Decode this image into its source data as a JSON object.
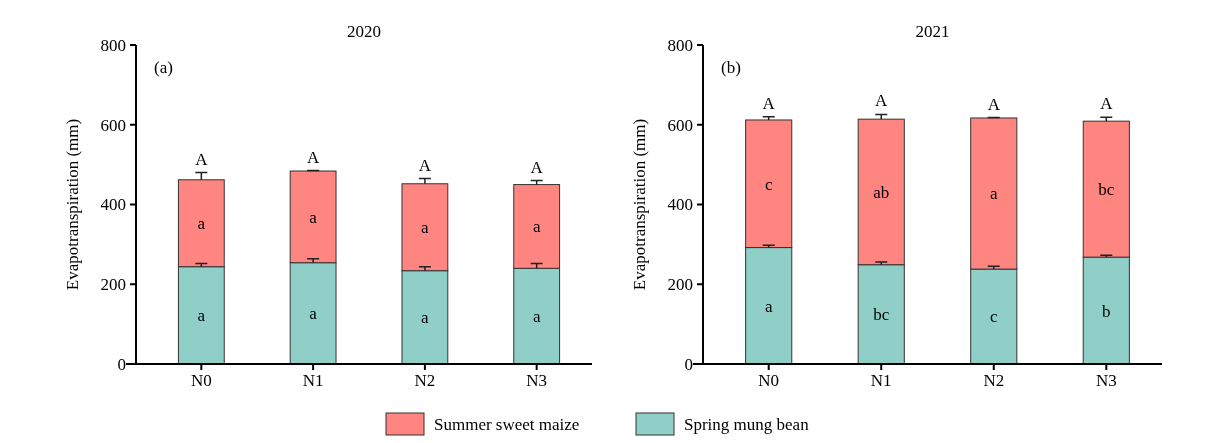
{
  "chart_data": [
    {
      "type": "bar",
      "stacked": true,
      "title": "2020",
      "ylabel": "Evapotranspiration (mm)",
      "categories": [
        "N0",
        "N1",
        "N2",
        "N3"
      ],
      "ylim": [
        0,
        800
      ],
      "yticks": [
        0,
        200,
        400,
        600,
        800
      ],
      "legend": "bottom",
      "series": [
        {
          "name": "Spring mung bean",
          "color": "#8fcfc8",
          "values": [
            244,
            254,
            234,
            240
          ],
          "errors": [
            8,
            10,
            10,
            12
          ],
          "value_labels": [
            "a",
            "a",
            "a",
            "a"
          ]
        },
        {
          "name": "Summer sweet maize",
          "color": "#ff8580",
          "values": [
            218,
            230,
            218,
            210
          ],
          "errors": [
            18,
            1,
            13,
            10
          ],
          "value_labels": [
            "a",
            "a",
            "a",
            "a"
          ]
        }
      ],
      "totals": [
        "A",
        "A",
        "A",
        "A"
      ],
      "annotations": [
        "(a)"
      ]
    },
    {
      "type": "bar",
      "stacked": true,
      "title": "2021",
      "ylabel": "Evapotranspiration (mm)",
      "categories": [
        "N0",
        "N1",
        "N2",
        "N3"
      ],
      "ylim": [
        0,
        800
      ],
      "yticks": [
        0,
        200,
        400,
        600,
        800
      ],
      "series": [
        {
          "color": "#8fcfc8",
          "values": [
            292,
            249,
            238,
            268
          ],
          "errors": [
            6,
            7,
            7,
            5
          ],
          "value_labels": [
            "a",
            "bc",
            "c",
            "b"
          ]
        },
        {
          "color": "#ff8580",
          "values": [
            320,
            365,
            379,
            341
          ],
          "errors": [
            8,
            12,
            1,
            10
          ],
          "value_labels": [
            "c",
            "ab",
            "a",
            "bc"
          ]
        }
      ],
      "totals": [
        "A",
        "A",
        "A",
        "A"
      ],
      "annotations": [
        "(b)"
      ]
    }
  ]
}
